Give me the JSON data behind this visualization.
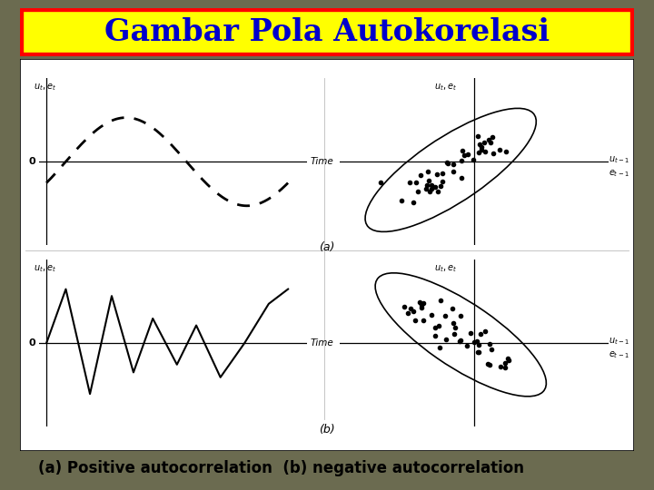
{
  "title": "Gambar Pola Autokorelasi",
  "title_color": "#0000CC",
  "title_bg": "#FFFF00",
  "title_border": "#FF0000",
  "caption": "(a) Positive autocorrelation  (b) negative autocorrelation",
  "bg_color": "#6B6B50",
  "panel_bg": "#FFFFFF",
  "label_a": "(a)",
  "label_b": "(b)"
}
